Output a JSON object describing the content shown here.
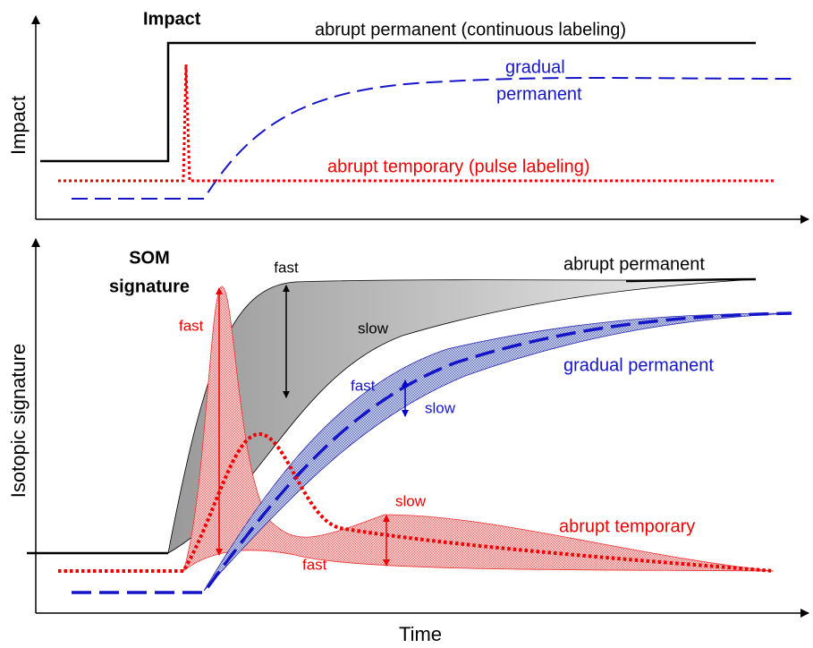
{
  "top_panel": {
    "y_axis_label": "Impact",
    "title": "Impact",
    "labels": {
      "abrupt_permanent": "abrupt permanent (continuous labeling)",
      "gradual_line1": "gradual",
      "gradual_line2": "permanent",
      "abrupt_temporary": "abrupt temporary (pulse labeling)"
    }
  },
  "bottom_panel": {
    "y_axis_label": "Isotopic signature",
    "title_line1": "SOM",
    "title_line2": "signature",
    "labels": {
      "abrupt_permanent": "abrupt permanent",
      "ap_fast": "fast",
      "ap_slow": "slow",
      "gradual_permanent": "gradual permanent",
      "gp_fast": "fast",
      "gp_slow": "slow",
      "abrupt_temporary": "abrupt temporary",
      "at_fast_top": "fast",
      "at_slow": "slow",
      "at_fast_bottom": "fast"
    }
  },
  "x_axis_label": "Time"
}
